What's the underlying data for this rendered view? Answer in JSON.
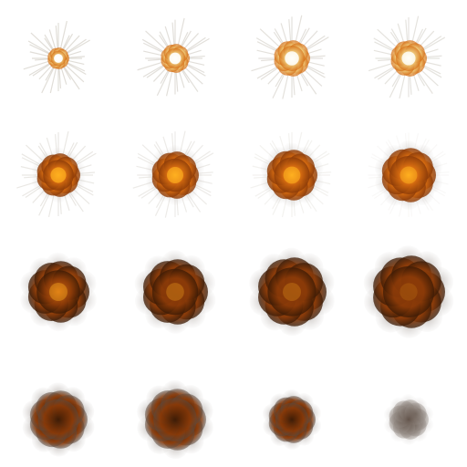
{
  "sprite_sheet": {
    "columns": 4,
    "rows": 4,
    "frame_count": 16,
    "frames": [
      {
        "index": 1,
        "phase": "flash",
        "intensity": 0.95,
        "smoke": 0.0,
        "rays": 1.0
      },
      {
        "index": 2,
        "phase": "flash",
        "intensity": 0.9,
        "smoke": 0.05,
        "rays": 0.95
      },
      {
        "index": 3,
        "phase": "flash",
        "intensity": 0.85,
        "smoke": 0.1,
        "rays": 0.9
      },
      {
        "index": 4,
        "phase": "flash",
        "intensity": 0.8,
        "smoke": 0.15,
        "rays": 0.85
      },
      {
        "index": 5,
        "phase": "fire",
        "intensity": 0.7,
        "smoke": 0.3,
        "rays": 0.7
      },
      {
        "index": 6,
        "phase": "fire",
        "intensity": 0.65,
        "smoke": 0.35,
        "rays": 0.6
      },
      {
        "index": 7,
        "phase": "fire",
        "intensity": 0.6,
        "smoke": 0.4,
        "rays": 0.4
      },
      {
        "index": 8,
        "phase": "fire",
        "intensity": 0.5,
        "smoke": 0.45,
        "rays": 0.2
      },
      {
        "index": 9,
        "phase": "smoke",
        "intensity": 0.4,
        "smoke": 0.6,
        "rays": 0.0
      },
      {
        "index": 10,
        "phase": "smoke",
        "intensity": 0.3,
        "smoke": 0.65,
        "rays": 0.0
      },
      {
        "index": 11,
        "phase": "smoke",
        "intensity": 0.25,
        "smoke": 0.7,
        "rays": 0.0
      },
      {
        "index": 12,
        "phase": "smoke",
        "intensity": 0.15,
        "smoke": 0.75,
        "rays": 0.0
      },
      {
        "index": 13,
        "phase": "fade",
        "intensity": 0.1,
        "smoke": 0.8,
        "rays": 0.0
      },
      {
        "index": 14,
        "phase": "fade",
        "intensity": 0.08,
        "smoke": 0.75,
        "rays": 0.0
      },
      {
        "index": 15,
        "phase": "fade",
        "intensity": 0.05,
        "smoke": 0.65,
        "rays": 0.0
      },
      {
        "index": 16,
        "phase": "fade",
        "intensity": 0.0,
        "smoke": 0.35,
        "rays": 0.0
      }
    ]
  },
  "colors": {
    "background": "#ffffff",
    "flash_core": "#fffbe0",
    "flash_mid": "#f3d88a",
    "fire_core": "#ffb020",
    "fire_mid": "#d46a10",
    "fire_dark": "#8a3a08",
    "smoke_dark": "#3a1a05",
    "smoke_gray": "#5a4a40",
    "smoke_light": "#9a928c"
  }
}
